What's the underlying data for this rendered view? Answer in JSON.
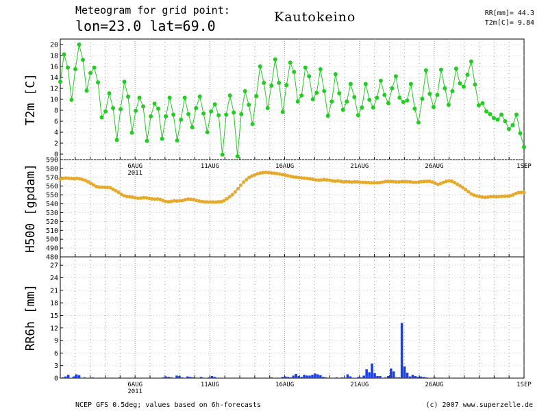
{
  "header": {
    "line1": "Meteogram for grid point:",
    "line2": "lon=23.0  lat=69.0",
    "station": "Kautokeino",
    "summary_rr": "RR[mm]= 44.3",
    "summary_t2m": "T2m[C]= 9.84"
  },
  "footer": {
    "source": "NCEP GFS 0.5deg; values based on 6h-forecasts",
    "copyright": "(c) 2007 www.superzelle.de"
  },
  "colors": {
    "t2m": "#22cc22",
    "h500": "#e6a92a",
    "rr6h": "#1a3fe6",
    "grid": "#999999"
  },
  "chart_data": [
    {
      "type": "line",
      "ylabel": "T2m [C]",
      "ylim": [
        -1,
        21
      ],
      "yticks": [
        0,
        2,
        4,
        6,
        8,
        10,
        12,
        14,
        16,
        18,
        20
      ],
      "x_range": [
        0,
        124
      ],
      "x_unit": "6h steps from 2011-08-01 00UTC",
      "date_ticks": [
        {
          "x": 20,
          "label": "6AUG",
          "sub": "2011"
        },
        {
          "x": 40,
          "label": "11AUG"
        },
        {
          "x": 60,
          "label": "16AUG"
        },
        {
          "x": 80,
          "label": "21AUG"
        },
        {
          "x": 100,
          "label": "26AUG"
        },
        {
          "x": 124,
          "label": "1SEP"
        }
      ],
      "series": [
        {
          "values": [
            13.2,
            18.2,
            15.8,
            9.9,
            15.5,
            20.0,
            17.2,
            11.6,
            14.8,
            15.8,
            13.1,
            6.7,
            7.8,
            11.1,
            8.4,
            2.6,
            8.2,
            13.2,
            10.5,
            3.9,
            7.9,
            10.3,
            8.7,
            2.4,
            6.9,
            9.2,
            8.3,
            2.8,
            6.9,
            10.3,
            7.2,
            2.5,
            6.3,
            10.3,
            7.3,
            4.9,
            8.4,
            10.5,
            7.4,
            4.0,
            7.8,
            9.1,
            7.1,
            -0.1,
            7.2,
            10.7,
            7.6,
            -0.4,
            7.3,
            11.5,
            9.0,
            5.5,
            10.6,
            16.0,
            13.0,
            8.4,
            12.5,
            17.3,
            13.0,
            7.7,
            12.6,
            16.7,
            15.0,
            9.6,
            10.7,
            15.8,
            14.2,
            10.0,
            11.2,
            15.5,
            11.5,
            7.0,
            9.6,
            14.6,
            11.1,
            8.1,
            9.6,
            12.8,
            10.4,
            7.1,
            8.5,
            12.8,
            9.9,
            8.5,
            10.3,
            13.4,
            10.8,
            9.3,
            12.0,
            14.2,
            10.3,
            9.5,
            9.8,
            12.8,
            8.3,
            5.8,
            10.1,
            15.3,
            11.0,
            8.6,
            10.8,
            15.4,
            12.0,
            9.0,
            11.5,
            15.6,
            12.9,
            12.3,
            14.5,
            16.9,
            12.7,
            8.9,
            9.3,
            7.8,
            7.3,
            6.6,
            6.3,
            7.2,
            6.0,
            4.6,
            5.3,
            7.2,
            3.8,
            1.3
          ]
        }
      ]
    },
    {
      "type": "line",
      "ylabel": "H500 [gpdam]",
      "ylim": [
        480,
        590
      ],
      "yticks": [
        480,
        490,
        500,
        510,
        520,
        530,
        540,
        550,
        560,
        570,
        580,
        590
      ],
      "x_range": [
        0,
        124
      ],
      "date_ticks": [
        {
          "x": 20,
          "label": "6AUG",
          "sub": "2011"
        },
        {
          "x": 40,
          "label": "11AUG"
        },
        {
          "x": 60,
          "label": "16AUG"
        },
        {
          "x": 80,
          "label": "21AUG"
        },
        {
          "x": 100,
          "label": "26AUG"
        },
        {
          "x": 124,
          "label": "1SEP"
        }
      ],
      "series": [
        {
          "values": [
            568.2,
            568.8,
            569.2,
            568.9,
            568.7,
            568.5,
            568.9,
            568.3,
            567.6,
            566.5,
            564.9,
            563.1,
            561.3,
            559.4,
            558.9,
            558.8,
            558.7,
            558.6,
            558.2,
            556.5,
            554.8,
            553.0,
            550.7,
            549.1,
            548.3,
            548.0,
            547.6,
            546.8,
            546.3,
            546.5,
            547.0,
            546.8,
            546.3,
            545.6,
            545.3,
            545.5,
            545.0,
            543.7,
            542.7,
            542.3,
            542.8,
            543.5,
            543.2,
            543.5,
            543.7,
            544.7,
            545.4,
            545.1,
            544.7,
            543.9,
            543.2,
            542.6,
            542.2,
            542.1,
            542.1,
            542.1,
            542.0,
            542.3,
            542.4,
            543.6,
            545.7,
            548.0,
            550.5,
            553.5,
            557.1,
            561.1,
            564.6,
            567.2,
            569.8,
            571.4,
            572.7,
            573.9,
            574.8,
            575.3,
            575.6,
            575.3,
            574.9,
            574.6,
            574.2,
            573.7,
            573.1,
            572.5,
            571.7,
            571.0,
            570.4,
            570.1,
            569.8,
            569.3,
            569.0,
            568.7,
            568.3,
            567.8,
            567.0,
            566.8,
            566.9,
            567.5,
            567.0,
            566.7,
            566.0,
            565.6,
            566.0,
            565.5,
            564.9,
            565.1,
            564.9,
            564.6,
            564.9,
            564.8,
            564.4,
            564.3,
            564.2,
            564.1,
            563.8,
            563.8,
            563.8,
            564.0,
            564.5,
            565.1,
            565.4,
            565.4,
            565.1,
            564.7,
            564.8,
            565.2,
            565.3,
            565.0,
            564.9,
            564.4,
            564.3,
            564.5,
            565.1,
            565.3,
            565.5,
            565.5,
            564.6,
            563.4,
            562.0,
            563.0,
            564.3,
            565.4,
            566.0,
            565.6,
            564.0,
            562.1,
            560.2,
            558.2,
            556.1,
            553.7,
            551.2,
            549.8,
            548.9,
            548.2,
            547.7,
            547.4,
            547.7,
            548.2,
            548.2,
            548.0,
            548.2,
            548.5,
            548.6,
            548.7,
            549.0,
            550.1,
            551.6,
            552.7,
            552.9,
            553.0
          ]
        }
      ]
    },
    {
      "type": "bar",
      "ylabel": "RR6h [mm]",
      "ylim": [
        0,
        29
      ],
      "yticks": [
        0,
        3,
        6,
        9,
        12,
        15,
        18,
        21,
        24,
        27
      ],
      "x_range": [
        0,
        124
      ],
      "date_ticks": [
        {
          "x": 20,
          "label": "6AUG",
          "sub": "2011"
        },
        {
          "x": 40,
          "label": "11AUG"
        },
        {
          "x": 60,
          "label": "16AUG"
        },
        {
          "x": 80,
          "label": "21AUG"
        },
        {
          "x": 100,
          "label": "26AUG"
        },
        {
          "x": 124,
          "label": "1SEP"
        }
      ],
      "series": [
        {
          "values": [
            0.1,
            0.2,
            0.4,
            0.8,
            0.1,
            0.4,
            0.9,
            0.7,
            0.1,
            0.2,
            0.1,
            0.1,
            0.2,
            0.1,
            0,
            0,
            0.1,
            0,
            0,
            0,
            0,
            0.1,
            0.2,
            0.1,
            0,
            0,
            0,
            0,
            0,
            0,
            0,
            0,
            0,
            0,
            0,
            0,
            0,
            0.1,
            0.2,
            0.4,
            0.3,
            0.2,
            0.1,
            0.6,
            0.5,
            0.2,
            0.1,
            0.4,
            0.3,
            0.2,
            0,
            0,
            0.3,
            0,
            0.1,
            0.2,
            0.5,
            0.3,
            0,
            0,
            0,
            0,
            0,
            0,
            0,
            0,
            0,
            0,
            0,
            0,
            0,
            0,
            0,
            0,
            0,
            0,
            0,
            0.1,
            0.2,
            0.1,
            0,
            0,
            0.3,
            0.4,
            0.3,
            0.2,
            0.6,
            1.0,
            0.5,
            0.3,
            0.8,
            0.6,
            0.6,
            0.8,
            1.1,
            0.9,
            0.7,
            0.3,
            0.2,
            0.1,
            0,
            0,
            0.2,
            0.1,
            0.2,
            0,
            0.9,
            0.4,
            0.1,
            0.1,
            0.3,
            0.2,
            0.6,
            2.1,
            1.4,
            3.5,
            1.2,
            0.5,
            0.5,
            0.1,
            0.2,
            0.5,
            2.3,
            1.6,
            0.2,
            0.2,
            13.2,
            2.8,
            1.3,
            0.4,
            0.8,
            0.5,
            0.3,
            0.4,
            0.3,
            0.2,
            0.1,
            0.1,
            0.2,
            0,
            0,
            0,
            0.1,
            0,
            0,
            0,
            0,
            0,
            0,
            0,
            0,
            0,
            0,
            0,
            0,
            0,
            0,
            0,
            0,
            0,
            0,
            0,
            0,
            0,
            0,
            0,
            0,
            0,
            0,
            0,
            0,
            0
          ]
        }
      ]
    }
  ]
}
